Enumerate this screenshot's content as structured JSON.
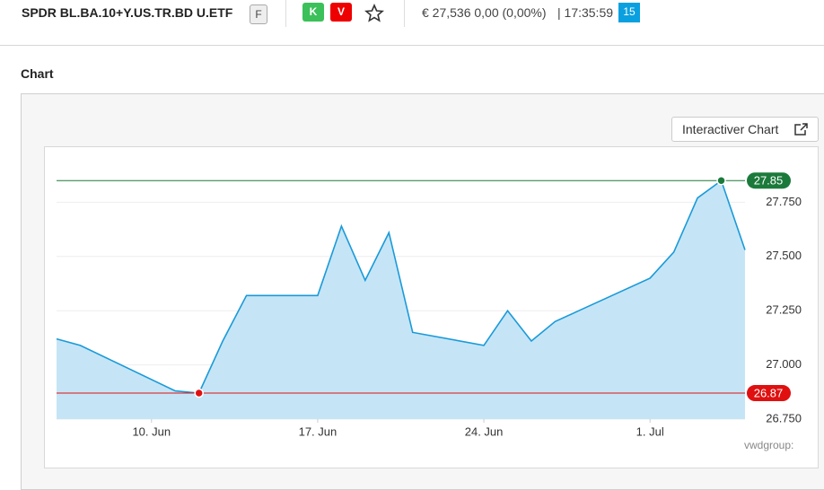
{
  "header": {
    "name": "SPDR BL.BA.10+Y.US.TR.BD U.ETF",
    "badge": "F",
    "buy": "K",
    "sell": "V",
    "quote": "€ 27,536 0,00 (0,00%)",
    "time": "| 17:35:59",
    "delay": "15"
  },
  "section_title": "Chart",
  "button": "Interactiver Chart",
  "source": "vwdgroup:",
  "chart_data": {
    "type": "area",
    "color": "#1a9ad9",
    "fill": "#c5e5f6",
    "x": [
      "06-06",
      "06-07",
      "06-11",
      "06-12",
      "06-13",
      "06-14",
      "06-17",
      "06-18",
      "06-19",
      "06-20",
      "06-21",
      "06-24",
      "06-25",
      "06-26",
      "06-27",
      "06-28",
      "07-01",
      "07-02",
      "07-03",
      "07-04",
      "07-05"
    ],
    "values": [
      27.12,
      27.09,
      26.88,
      26.87,
      27.11,
      27.32,
      27.32,
      27.64,
      27.39,
      27.61,
      27.15,
      27.09,
      27.25,
      27.11,
      27.2,
      27.25,
      27.4,
      27.52,
      27.77,
      27.85,
      27.53
    ],
    "xlim": [
      "06-06",
      "07-05"
    ],
    "xticks": [
      {
        "value": "06-10",
        "label": "10. Jun"
      },
      {
        "value": "06-17",
        "label": "17. Jun"
      },
      {
        "value": "06-24",
        "label": "24. Jun"
      },
      {
        "value": "07-01",
        "label": "1. Jul"
      }
    ],
    "ylim": [
      26.75,
      28.0
    ],
    "yticks": [
      {
        "value": 26.75,
        "label": "26.750"
      },
      {
        "value": 27,
        "label": "27.000"
      },
      {
        "value": 27.25,
        "label": "27.250"
      },
      {
        "value": 27.5,
        "label": "27.500"
      },
      {
        "value": 27.75,
        "label": "27.750"
      }
    ],
    "grid": true,
    "high": 27.85,
    "high_color": "#1b7a3b",
    "low": 26.87,
    "low_color": "#e01010"
  }
}
